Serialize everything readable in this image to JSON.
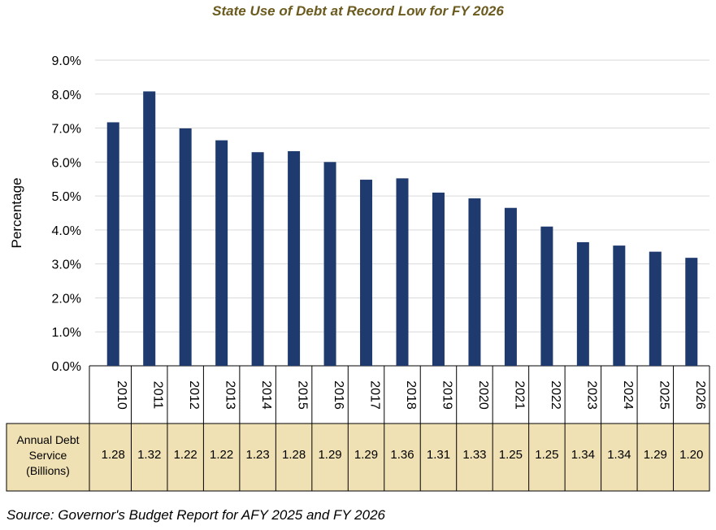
{
  "chart_data": {
    "type": "bar",
    "title": "State Use of Debt at Record Low for FY 2026",
    "xlabel": "",
    "ylabel": "Percentage",
    "ylim": [
      0,
      9
    ],
    "yticks": [
      "0.0%",
      "1.0%",
      "2.0%",
      "3.0%",
      "4.0%",
      "5.0%",
      "6.0%",
      "7.0%",
      "8.0%",
      "9.0%"
    ],
    "grid": true,
    "categories": [
      "2010",
      "2011",
      "2012",
      "2013",
      "2014",
      "2015",
      "2016",
      "2017",
      "2018",
      "2019",
      "2020",
      "2021",
      "2022",
      "2023",
      "2024",
      "2025",
      "2026"
    ],
    "values": [
      7.17,
      8.08,
      6.99,
      6.64,
      6.29,
      6.32,
      6.0,
      5.48,
      5.52,
      5.1,
      4.93,
      4.65,
      4.1,
      3.64,
      3.54,
      3.36,
      3.18
    ],
    "bar_color": "#1f3a6e",
    "data_table": {
      "row_label_lines": [
        "Annual Debt",
        "Service",
        "(Billions)"
      ],
      "values": [
        "1.28",
        "1.32",
        "1.22",
        "1.22",
        "1.23",
        "1.28",
        "1.29",
        "1.29",
        "1.36",
        "1.31",
        "1.33",
        "1.25",
        "1.25",
        "1.34",
        "1.34",
        "1.29",
        "1.20"
      ],
      "fill_color": "#f0e1b4"
    }
  },
  "source": "Source: Governor's Budget Report for AFY 2025 and FY 2026"
}
